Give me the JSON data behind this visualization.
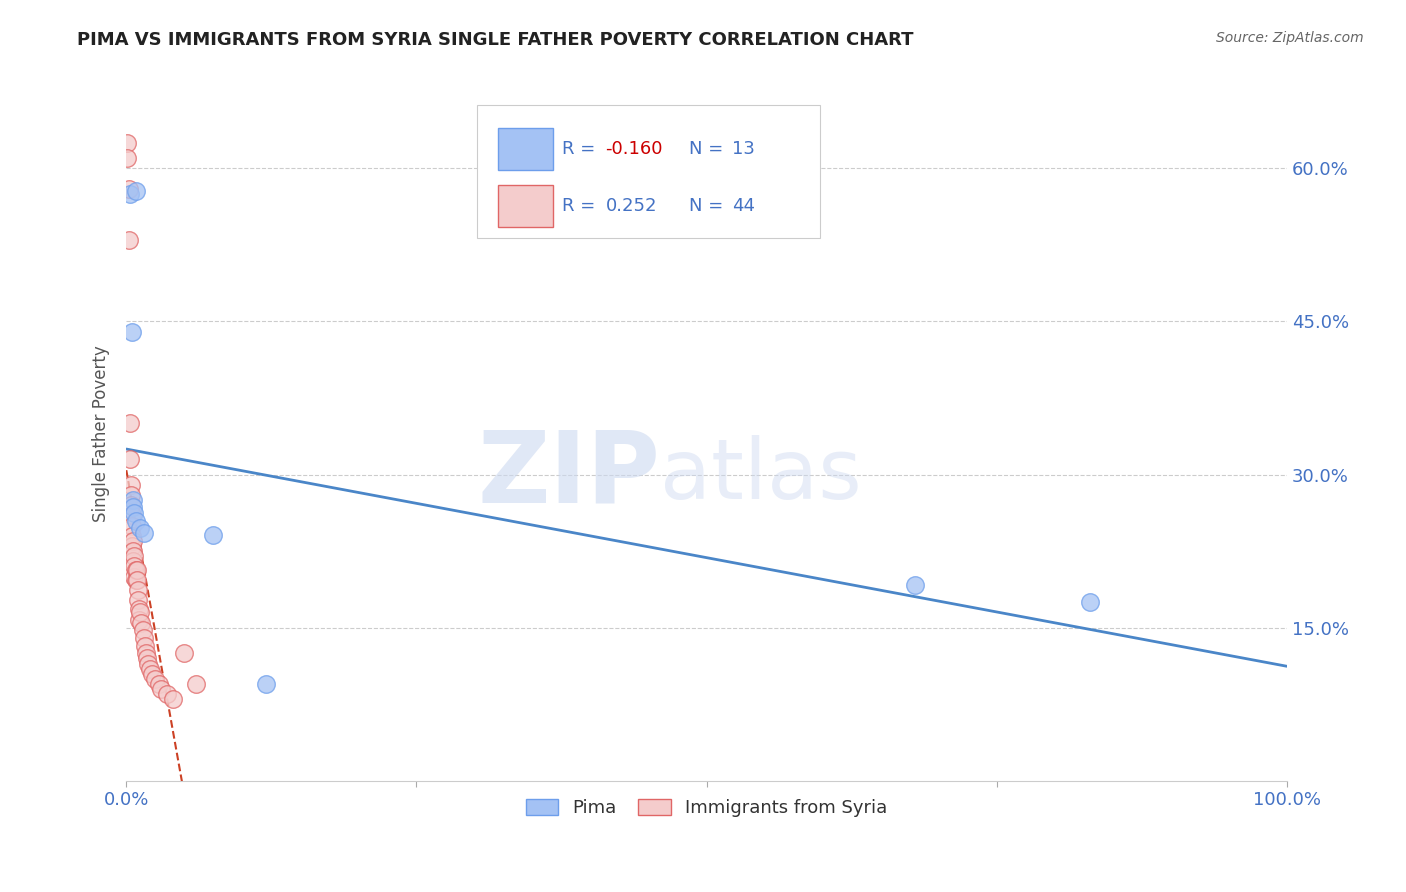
{
  "title": "PIMA VS IMMIGRANTS FROM SYRIA SINGLE FATHER POVERTY CORRELATION CHART",
  "source": "Source: ZipAtlas.com",
  "ylabel": "Single Father Poverty",
  "xlim": [
    0,
    1.0
  ],
  "ylim": [
    0,
    0.68
  ],
  "yticks": [
    0.15,
    0.3,
    0.45,
    0.6
  ],
  "ytick_labels": [
    "15.0%",
    "30.0%",
    "45.0%",
    "60.0%"
  ],
  "xticks": [
    0.0,
    0.25,
    0.5,
    0.75,
    1.0
  ],
  "xtick_labels": [
    "0.0%",
    "",
    "",
    "",
    "100.0%"
  ],
  "legend_label1": "Pima",
  "legend_label2": "Immigrants from Syria",
  "R1": -0.16,
  "N1": 13,
  "R2": 0.252,
  "N2": 44,
  "color_pima_fill": "#a4c2f4",
  "color_pima_edge": "#6d9eeb",
  "color_syria_fill": "#f4cccc",
  "color_syria_edge": "#e06666",
  "color_pima_line": "#4a86c8",
  "color_syria_line": "#cc4125",
  "legend_text_color": "#4472c4",
  "legend_rval_color": "#cc0000",
  "tick_color": "#4472c4",
  "watermark_color": "#ccd9f0",
  "pima_x": [
    0.003,
    0.008,
    0.005,
    0.006,
    0.006,
    0.007,
    0.008,
    0.012,
    0.015,
    0.075,
    0.12,
    0.68,
    0.83
  ],
  "pima_y": [
    0.575,
    0.578,
    0.44,
    0.275,
    0.268,
    0.262,
    0.255,
    0.248,
    0.243,
    0.241,
    0.095,
    0.192,
    0.175
  ],
  "syria_x": [
    0.001,
    0.001,
    0.002,
    0.002,
    0.003,
    0.003,
    0.004,
    0.004,
    0.004,
    0.005,
    0.005,
    0.005,
    0.005,
    0.006,
    0.006,
    0.006,
    0.007,
    0.007,
    0.007,
    0.008,
    0.008,
    0.009,
    0.009,
    0.01,
    0.01,
    0.011,
    0.011,
    0.012,
    0.013,
    0.014,
    0.015,
    0.016,
    0.017,
    0.018,
    0.019,
    0.02,
    0.022,
    0.025,
    0.028,
    0.03,
    0.035,
    0.04,
    0.05,
    0.06
  ],
  "syria_y": [
    0.625,
    0.61,
    0.58,
    0.53,
    0.35,
    0.315,
    0.29,
    0.28,
    0.27,
    0.26,
    0.25,
    0.24,
    0.23,
    0.235,
    0.225,
    0.215,
    0.22,
    0.21,
    0.2,
    0.207,
    0.197,
    0.207,
    0.197,
    0.187,
    0.177,
    0.168,
    0.158,
    0.165,
    0.155,
    0.148,
    0.14,
    0.132,
    0.125,
    0.12,
    0.115,
    0.11,
    0.105,
    0.1,
    0.095,
    0.09,
    0.085,
    0.08,
    0.125,
    0.095
  ]
}
